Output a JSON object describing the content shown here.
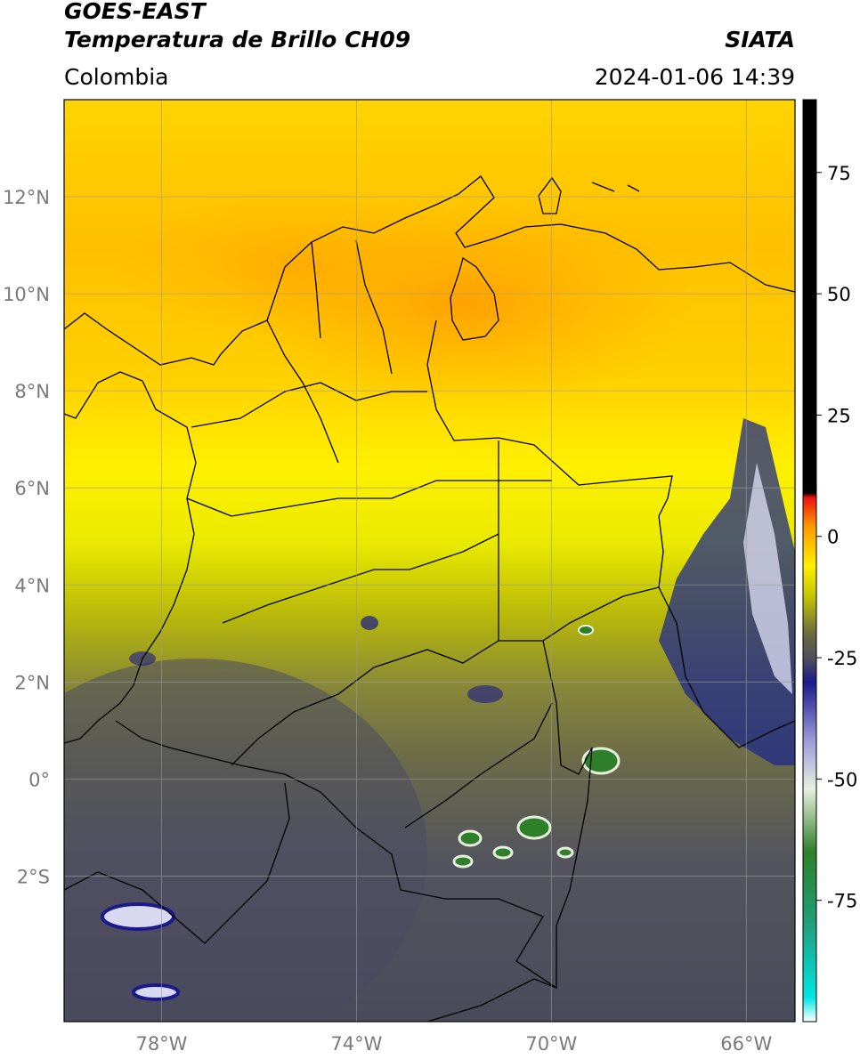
{
  "header": {
    "satellite": "GOES-EAST",
    "product": "Temperatura de Brillo CH09",
    "region": "Colombia",
    "source": "SIATA",
    "timestamp": "2024-01-06 14:39"
  },
  "map": {
    "lon_range": [
      -80,
      -65
    ],
    "lat_range": [
      -5,
      14
    ],
    "lat_ticks": [
      {
        "value": 12,
        "label": "12°N"
      },
      {
        "value": 10,
        "label": "10°N"
      },
      {
        "value": 8,
        "label": "8°N"
      },
      {
        "value": 6,
        "label": "6°N"
      },
      {
        "value": 4,
        "label": "4°N"
      },
      {
        "value": 2,
        "label": "2°N"
      },
      {
        "value": 0,
        "label": "0°"
      },
      {
        "value": -2,
        "label": "2°S"
      }
    ],
    "lon_ticks": [
      {
        "value": -78,
        "label": "78°W"
      },
      {
        "value": -74,
        "label": "74°W"
      },
      {
        "value": -70,
        "label": "70°W"
      },
      {
        "value": -66,
        "label": "66°W"
      }
    ],
    "gridlines": true
  },
  "colorbar": {
    "range": [
      -100,
      90
    ],
    "ticks": [
      {
        "value": 75,
        "label": "75"
      },
      {
        "value": 50,
        "label": "50"
      },
      {
        "value": 25,
        "label": "25"
      },
      {
        "value": 0,
        "label": "0"
      },
      {
        "value": -25,
        "label": "-25"
      },
      {
        "value": -50,
        "label": "-50"
      },
      {
        "value": -75,
        "label": "-75"
      }
    ],
    "stops": [
      {
        "value": -100,
        "color": "#ffffff"
      },
      {
        "value": -95,
        "color": "#00e5e5"
      },
      {
        "value": -80,
        "color": "#1fa07a"
      },
      {
        "value": -65,
        "color": "#2f7f2a"
      },
      {
        "value": -52,
        "color": "#e8f0e0"
      },
      {
        "value": -42,
        "color": "#9a9ad8"
      },
      {
        "value": -30,
        "color": "#1a1a8a"
      },
      {
        "value": -25,
        "color": "#50505a"
      },
      {
        "value": -20,
        "color": "#6b6b40"
      },
      {
        "value": -12,
        "color": "#c8c800"
      },
      {
        "value": -6,
        "color": "#fff000"
      },
      {
        "value": 2,
        "color": "#ff9a00"
      },
      {
        "value": 8,
        "color": "#ee1111"
      },
      {
        "value": 9,
        "color": "#000000"
      },
      {
        "value": 90,
        "color": "#000000"
      }
    ]
  }
}
